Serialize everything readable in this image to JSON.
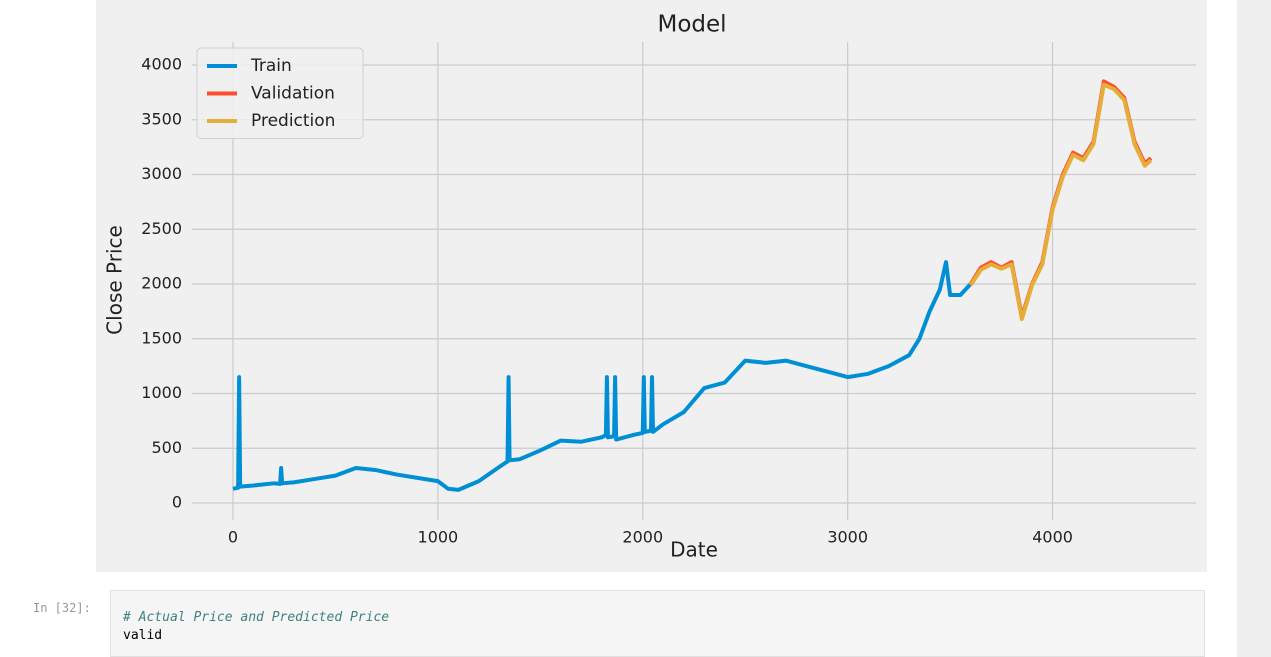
{
  "chart_data": {
    "type": "line",
    "title": "Model",
    "x_label": "Date",
    "y_label": "Close Price",
    "x": [
      0,
      25,
      30,
      35,
      100,
      150,
      200,
      230,
      235,
      240,
      300,
      400,
      500,
      600,
      700,
      800,
      900,
      1000,
      1050,
      1100,
      1200,
      1300,
      1340,
      1345,
      1350,
      1400,
      1500,
      1600,
      1700,
      1800,
      1820,
      1825,
      1830,
      1860,
      1865,
      1870,
      1950,
      2000,
      2005,
      2010,
      2040,
      2045,
      2050,
      2100,
      2200,
      2300,
      2400,
      2500,
      2600,
      2700,
      2800,
      2900,
      3000,
      3100,
      3200,
      3300,
      3350,
      3400,
      3450,
      3480,
      3500,
      3550,
      3600,
      3650,
      3700,
      3750,
      3800,
      3850,
      3900,
      3950,
      4000,
      4050,
      4100,
      4150,
      4200,
      4250,
      4300,
      4350,
      4400,
      4450,
      4480
    ],
    "series": [
      {
        "name": "Train",
        "color": "#008fd5",
        "values": [
          130,
          140,
          1150,
          150,
          160,
          170,
          180,
          175,
          320,
          180,
          190,
          220,
          250,
          320,
          300,
          260,
          230,
          200,
          130,
          120,
          200,
          330,
          380,
          1150,
          390,
          400,
          480,
          570,
          560,
          600,
          620,
          1150,
          600,
          610,
          1150,
          580,
          620,
          640,
          1150,
          650,
          660,
          1150,
          650,
          720,
          830,
          1050,
          1100,
          1300,
          1280,
          1300,
          1250,
          1200,
          1150,
          1180,
          1250,
          1350,
          1500,
          1750,
          1950,
          2200,
          1900,
          1900,
          2000,
          null,
          null,
          null,
          null,
          null,
          null,
          null,
          null,
          null,
          null,
          null,
          null,
          null,
          null,
          null,
          null,
          null,
          null
        ]
      },
      {
        "name": "Validation",
        "color": "#fc4f30",
        "values": [
          null,
          null,
          null,
          null,
          null,
          null,
          null,
          null,
          null,
          null,
          null,
          null,
          null,
          null,
          null,
          null,
          null,
          null,
          null,
          null,
          null,
          null,
          null,
          null,
          null,
          null,
          null,
          null,
          null,
          null,
          null,
          null,
          null,
          null,
          null,
          null,
          null,
          null,
          null,
          null,
          null,
          null,
          null,
          null,
          null,
          null,
          null,
          null,
          null,
          null,
          null,
          null,
          null,
          null,
          null,
          null,
          null,
          null,
          null,
          null,
          null,
          null,
          2000,
          2150,
          2200,
          2150,
          2200,
          1700,
          2000,
          2200,
          2700,
          3000,
          3200,
          3150,
          3300,
          3850,
          3800,
          3700,
          3300,
          3100,
          3150
        ]
      },
      {
        "name": "Prediction",
        "color": "#e5ae38",
        "values": [
          null,
          null,
          null,
          null,
          null,
          null,
          null,
          null,
          null,
          null,
          null,
          null,
          null,
          null,
          null,
          null,
          null,
          null,
          null,
          null,
          null,
          null,
          null,
          null,
          null,
          null,
          null,
          null,
          null,
          null,
          null,
          null,
          null,
          null,
          null,
          null,
          null,
          null,
          null,
          null,
          null,
          null,
          null,
          null,
          null,
          null,
          null,
          null,
          null,
          null,
          null,
          null,
          null,
          null,
          null,
          null,
          null,
          null,
          null,
          null,
          null,
          null,
          1990,
          2130,
          2180,
          2140,
          2180,
          1680,
          1990,
          2180,
          2680,
          2980,
          3180,
          3130,
          3280,
          3820,
          3780,
          3680,
          3280,
          3080,
          3130
        ]
      }
    ],
    "xlim": [
      -200,
      4700
    ],
    "ylim": [
      -155,
      4210
    ],
    "xticks": [
      0,
      1000,
      2000,
      3000,
      4000
    ],
    "yticks": [
      0,
      500,
      1000,
      1500,
      2000,
      2500,
      3000,
      3500,
      4000
    ],
    "grid": true,
    "legend": "upper left"
  },
  "cell": {
    "prompt": "In [32]:",
    "code": [
      "# Actual Price and Predicted Price",
      "valid"
    ]
  }
}
